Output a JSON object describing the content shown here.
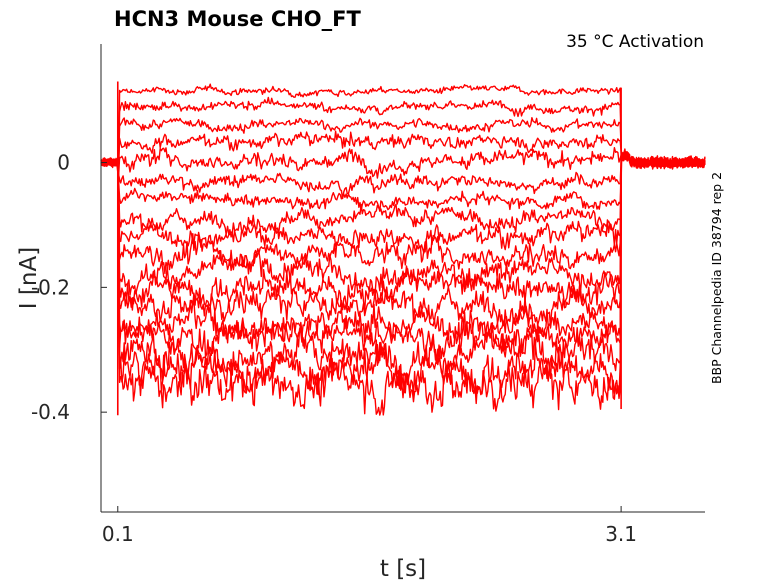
{
  "chart_data": {
    "type": "line",
    "title": "HCN3  Mouse  CHO_FT",
    "annotation": "35 °C  Activation",
    "side_label": "BBP Channelpedia ID 38794 rep 2",
    "xlabel": "t [s]",
    "ylabel": "I [nA]",
    "xlim": [
      0.0,
      3.6
    ],
    "ylim": [
      -0.56,
      0.19
    ],
    "x_ticks": [
      0.1,
      3.1
    ],
    "x_tick_labels": [
      "0.1",
      "3.1"
    ],
    "y_ticks": [
      0,
      -0.2,
      -0.4
    ],
    "y_tick_labels": [
      "0",
      "-0.2",
      "-0.4"
    ],
    "grid": false,
    "legend": "none",
    "color": "#ff0000",
    "step_start": 0.1,
    "step_end": 3.1,
    "baseline": 0.0,
    "series_levels": [
      0.115,
      0.09,
      0.06,
      0.035,
      0.005,
      -0.03,
      -0.06,
      -0.09,
      -0.115,
      -0.145,
      -0.175,
      -0.2,
      -0.225,
      -0.255,
      -0.28,
      -0.305,
      -0.33,
      -0.355
    ],
    "series_noise": [
      0.002,
      0.003,
      0.003,
      0.004,
      0.005,
      0.004,
      0.004,
      0.005,
      0.006,
      0.007,
      0.007,
      0.008,
      0.008,
      0.009,
      0.009,
      0.01,
      0.011,
      0.012
    ]
  }
}
